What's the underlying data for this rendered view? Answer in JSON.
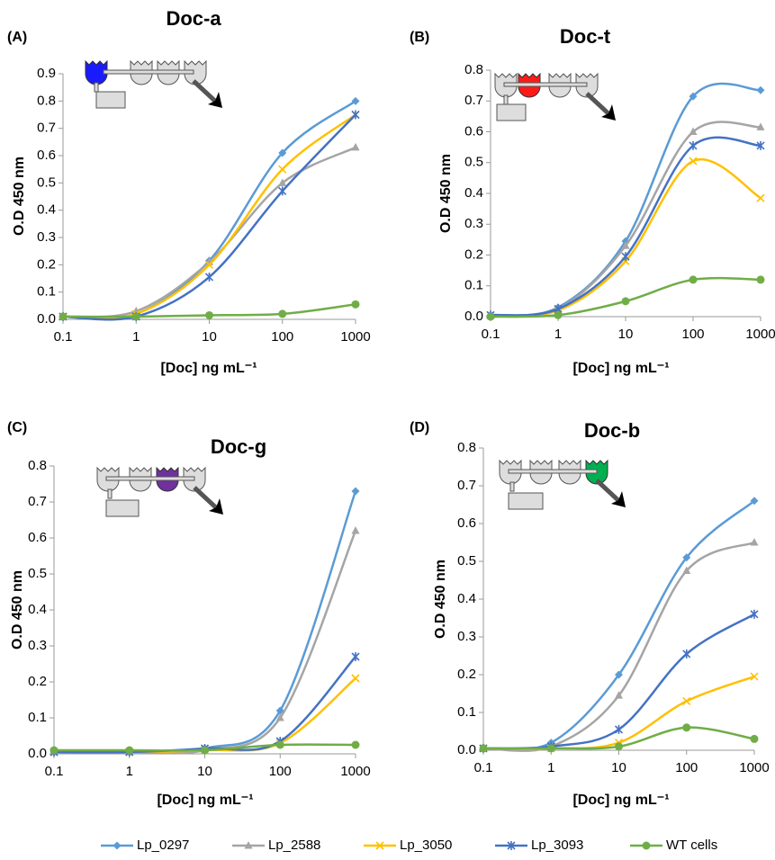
{
  "legend": [
    {
      "name": "Lp_0297",
      "color": "#5b9bd5",
      "marker": "diamond"
    },
    {
      "name": "Lp_2588",
      "color": "#a5a5a5",
      "marker": "triangle"
    },
    {
      "name": "Lp_3050",
      "color": "#ffc000",
      "marker": "x"
    },
    {
      "name": "Lp_3093",
      "color": "#4472c4",
      "marker": "star"
    },
    {
      "name": "WT cells",
      "color": "#70ad47",
      "marker": "circle"
    }
  ],
  "chart_data": [
    {
      "type": "line",
      "panel_label": "(A)",
      "title": "Doc-a",
      "xlabel": "[Doc] ng mL⁻¹",
      "ylabel": "O.D 450 nm",
      "log_x": true,
      "x": [
        0.1,
        1,
        10,
        100,
        1000
      ],
      "xlim": [
        0.1,
        1000
      ],
      "xticks": [
        0.1,
        1,
        10,
        100,
        1000
      ],
      "ylim": [
        0,
        0.9
      ],
      "yticks": [
        {
          "value": 0,
          "label": "0.0"
        },
        0.1,
        0.2,
        0.3,
        0.4,
        0.5,
        0.6,
        0.7,
        0.8,
        0.9
      ],
      "series": [
        {
          "values": [
            0.01,
            0.02,
            0.215,
            0.61,
            0.8
          ]
        },
        {
          "values": [
            0.01,
            0.03,
            0.21,
            0.5,
            0.63
          ]
        },
        {
          "values": [
            0.01,
            0.02,
            0.2,
            0.55,
            0.75
          ]
        },
        {
          "values": [
            0.01,
            0.01,
            0.155,
            0.47,
            0.75
          ]
        },
        {
          "values": [
            0.01,
            0.01,
            0.015,
            0.02,
            0.055
          ]
        }
      ]
    },
    {
      "type": "line",
      "panel_label": "(B)",
      "title": "Doc-t",
      "xlabel": "[Doc] ng mL⁻¹",
      "ylabel": "O.D 450 nm",
      "log_x": true,
      "x": [
        0.1,
        1,
        10,
        100,
        1000
      ],
      "xlim": [
        0.1,
        1000
      ],
      "xticks": [
        0.1,
        1,
        10,
        100,
        1000
      ],
      "ylim": [
        0,
        0.8
      ],
      "yticks": [
        {
          "value": 0,
          "label": "0.0"
        },
        0.1,
        0.2,
        0.3,
        0.4,
        0.5,
        0.6,
        0.7,
        0.8
      ],
      "series": [
        {
          "values": [
            0.005,
            0.03,
            0.245,
            0.715,
            0.735
          ]
        },
        {
          "values": [
            0.005,
            0.025,
            0.23,
            0.6,
            0.615
          ]
        },
        {
          "values": [
            0.005,
            0.02,
            0.18,
            0.505,
            0.385
          ]
        },
        {
          "values": [
            0.005,
            0.025,
            0.195,
            0.555,
            0.555
          ]
        },
        {
          "values": [
            0,
            0.005,
            0.05,
            0.12,
            0.12
          ]
        }
      ]
    },
    {
      "type": "line",
      "panel_label": "(C)",
      "title": "Doc-g",
      "xlabel": "[Doc] ng mL⁻¹",
      "ylabel": "O.D 450 nm",
      "log_x": true,
      "x": [
        0.1,
        1,
        10,
        100,
        1000
      ],
      "xlim": [
        0.1,
        1000
      ],
      "xticks": [
        0.1,
        1,
        10,
        100,
        1000
      ],
      "ylim": [
        0,
        0.8
      ],
      "yticks": [
        {
          "value": 0,
          "label": "0.0"
        },
        0.1,
        0.2,
        0.3,
        0.4,
        0.5,
        0.6,
        0.7,
        0.8
      ],
      "series": [
        {
          "values": [
            0.005,
            0.005,
            0.015,
            0.12,
            0.73
          ]
        },
        {
          "values": [
            0.005,
            0.005,
            0.01,
            0.1,
            0.62
          ]
        },
        {
          "values": [
            0.005,
            0.005,
            0.01,
            0.03,
            0.21
          ]
        },
        {
          "values": [
            0.005,
            0.005,
            0.015,
            0.035,
            0.27
          ]
        },
        {
          "values": [
            0.01,
            0.01,
            0.01,
            0.025,
            0.025
          ]
        }
      ]
    },
    {
      "type": "line",
      "panel_label": "(D)",
      "title": "Doc-b",
      "xlabel": "[Doc] ng mL⁻¹",
      "ylabel": "O.D 450 nm",
      "log_x": true,
      "x": [
        0.1,
        1,
        10,
        100,
        1000
      ],
      "xlim": [
        0.1,
        1000
      ],
      "xticks": [
        0.1,
        1,
        10,
        100,
        1000
      ],
      "ylim": [
        0,
        0.8
      ],
      "yticks": [
        {
          "value": 0,
          "label": "0.0"
        },
        0.1,
        0.2,
        0.3,
        0.4,
        0.5,
        0.6,
        0.7,
        0.8
      ],
      "series": [
        {
          "values": [
            0.005,
            0.02,
            0.2,
            0.51,
            0.66
          ]
        },
        {
          "values": [
            0.005,
            0.01,
            0.145,
            0.475,
            0.55
          ]
        },
        {
          "values": [
            0.005,
            0.005,
            0.02,
            0.13,
            0.195
          ]
        },
        {
          "values": [
            0.005,
            0.01,
            0.055,
            0.255,
            0.36
          ]
        },
        {
          "values": [
            0.005,
            0.005,
            0.01,
            0.06,
            0.03
          ]
        }
      ]
    }
  ]
}
